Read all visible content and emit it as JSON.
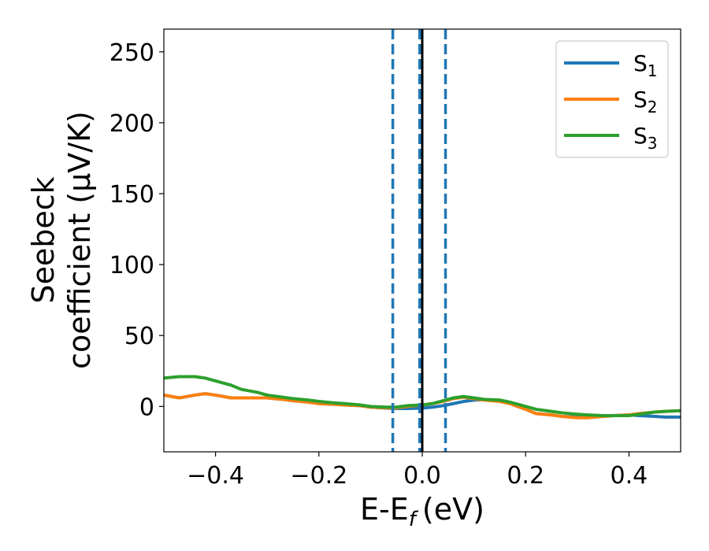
{
  "chart_data": {
    "type": "line",
    "xlabel": "E-E",
    "xlabel_sub": "f",
    "xlabel_unit": "(eV)",
    "ylabel_line1": "Seebeck",
    "ylabel_line2": "coefficient  (μV/K)",
    "xlim": [
      -0.5,
      0.5
    ],
    "ylim": [
      -32,
      266
    ],
    "xticks": [
      -0.4,
      -0.2,
      0.0,
      0.2,
      0.4
    ],
    "xtick_labels": [
      "−0.4",
      "−0.2",
      "0.0",
      "0.2",
      "0.4"
    ],
    "yticks": [
      0,
      50,
      100,
      150,
      200,
      250
    ],
    "ytick_labels": [
      "0",
      "50",
      "100",
      "150",
      "200",
      "250"
    ],
    "grid": false,
    "legend_position": "top-right",
    "vlines": [
      {
        "x": 0.0,
        "style": "solid",
        "color": "#000000"
      },
      {
        "x": -0.057,
        "style": "dashed",
        "color": "#1f77b4"
      },
      {
        "x": -0.005,
        "style": "dashed",
        "color": "#1f77b4"
      },
      {
        "x": 0.045,
        "style": "dashed",
        "color": "#1f77b4"
      }
    ],
    "series": [
      {
        "name": "S",
        "name_sub": "1",
        "color": "#1f77b4",
        "x": [
          -0.5,
          -0.47,
          -0.44,
          -0.42,
          -0.4,
          -0.37,
          -0.35,
          -0.32,
          -0.3,
          -0.27,
          -0.25,
          -0.22,
          -0.2,
          -0.17,
          -0.15,
          -0.12,
          -0.1,
          -0.07,
          -0.05,
          -0.03,
          0.0,
          0.02,
          0.04,
          0.06,
          0.08,
          0.1,
          0.12,
          0.15,
          0.17,
          0.2,
          0.22,
          0.25,
          0.27,
          0.3,
          0.32,
          0.35,
          0.37,
          0.4,
          0.42,
          0.45,
          0.47,
          0.5
        ],
        "values": [
          8,
          6,
          8,
          9,
          8,
          6,
          6,
          6,
          6,
          5,
          4,
          3,
          2,
          1.5,
          1,
          0.5,
          -0.5,
          -1.2,
          -1.5,
          -1.5,
          -1.2,
          -0.5,
          0.5,
          2,
          3.5,
          4.5,
          4.8,
          4,
          2,
          -2,
          -5,
          -6,
          -7,
          -7.5,
          -7.5,
          -7,
          -6.5,
          -6,
          -6.5,
          -7,
          -7.5,
          -7.5
        ]
      },
      {
        "name": "S",
        "name_sub": "2",
        "color": "#ff7f0e",
        "x": [
          -0.5,
          -0.47,
          -0.44,
          -0.42,
          -0.4,
          -0.37,
          -0.35,
          -0.32,
          -0.3,
          -0.27,
          -0.25,
          -0.22,
          -0.2,
          -0.17,
          -0.15,
          -0.12,
          -0.1,
          -0.07,
          -0.05,
          -0.03,
          0.0,
          0.02,
          0.04,
          0.06,
          0.08,
          0.1,
          0.12,
          0.15,
          0.17,
          0.2,
          0.22,
          0.25,
          0.27,
          0.3,
          0.32,
          0.35,
          0.37,
          0.4,
          0.42,
          0.45,
          0.47,
          0.5
        ],
        "values": [
          8,
          6,
          8,
          9,
          8,
          6,
          6,
          6,
          6,
          5,
          4,
          3,
          2,
          1.5,
          1,
          0.5,
          -0.5,
          -1,
          -1,
          0,
          1,
          2,
          3.5,
          5.5,
          6.5,
          5.5,
          4.5,
          3.5,
          2,
          -2,
          -5,
          -6,
          -7,
          -8,
          -8,
          -7,
          -6.5,
          -6,
          -5,
          -4,
          -3.5,
          -3
        ]
      },
      {
        "name": "S",
        "name_sub": "3",
        "color": "#2ca02c",
        "x": [
          -0.5,
          -0.47,
          -0.44,
          -0.42,
          -0.4,
          -0.37,
          -0.35,
          -0.32,
          -0.3,
          -0.27,
          -0.25,
          -0.22,
          -0.2,
          -0.17,
          -0.15,
          -0.12,
          -0.1,
          -0.07,
          -0.05,
          -0.03,
          0.0,
          0.02,
          0.04,
          0.06,
          0.08,
          0.1,
          0.12,
          0.15,
          0.17,
          0.2,
          0.22,
          0.25,
          0.27,
          0.3,
          0.32,
          0.35,
          0.37,
          0.4,
          0.42,
          0.45,
          0.47,
          0.5
        ],
        "values": [
          20,
          21,
          21,
          20,
          18,
          15,
          12,
          10,
          8,
          6.5,
          5.5,
          4.5,
          3.5,
          2.5,
          2,
          1,
          0,
          -0.5,
          -0.5,
          0.5,
          1,
          2,
          4,
          6,
          7,
          6,
          5,
          4.5,
          3,
          0,
          -2,
          -3.5,
          -4.5,
          -5.5,
          -6,
          -6.5,
          -6.5,
          -6.5,
          -5.5,
          -4,
          -3.5,
          -3
        ]
      }
    ]
  }
}
